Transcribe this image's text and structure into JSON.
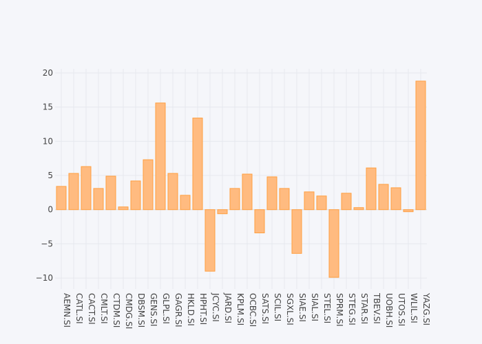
{
  "chart_data": {
    "type": "bar",
    "title": "",
    "xlabel": "",
    "ylabel": "",
    "categories": [
      "AEMN.SI",
      "CATL.SI",
      "CACT.SI",
      "CMLT.SI",
      "CTDM.SI",
      "CMDG.SI",
      "DBSM.SI",
      "GENS.SI",
      "GLPL.SI",
      "GAGR.SI",
      "HKLD.SI",
      "HPHT.SI",
      "JCYC.SI",
      "JARD.SI",
      "KPLM.SI",
      "OCBC.SI",
      "SATS.SI",
      "SCIL.SI",
      "SGXL.SI",
      "SIAE.SI",
      "SIAL.SI",
      "STEL.SI",
      "SPRM.SI",
      "STEG.SI",
      "STAR.SI",
      "TBEV.SI",
      "UOBH.SI",
      "UTOS.SI",
      "WLIL.SI",
      "YAZG.SI"
    ],
    "values": [
      3.4,
      5.3,
      6.3,
      3.1,
      4.9,
      0.4,
      4.2,
      7.3,
      15.6,
      5.3,
      2.1,
      13.4,
      -9.0,
      -0.6,
      3.1,
      5.2,
      -3.4,
      4.8,
      3.1,
      -6.4,
      2.6,
      2.0,
      -9.9,
      2.4,
      0.3,
      6.1,
      3.7,
      3.2,
      -0.3,
      18.8
    ],
    "ylim": [
      -11.6,
      20.6
    ],
    "yticks": [
      -10,
      -5,
      0,
      5,
      10,
      15,
      20
    ],
    "ytick_labels": [
      "−10",
      "−5",
      "0",
      "5",
      "10",
      "15",
      "20"
    ],
    "grid": true,
    "bar_fill": "#ffbb80",
    "bar_stroke": "#ff9f40"
  }
}
